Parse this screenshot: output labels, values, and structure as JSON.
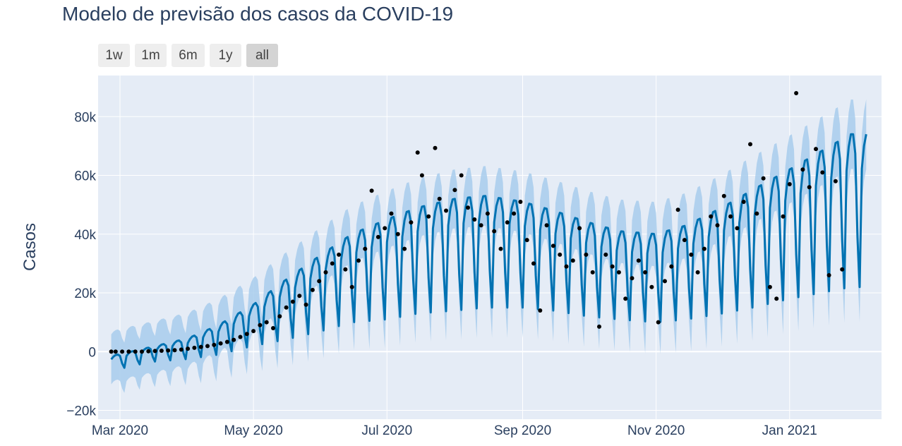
{
  "title": "Modelo de previsão dos casos da COVID-19",
  "range_selector": {
    "buttons": [
      {
        "label": "1w",
        "active": false
      },
      {
        "label": "1m",
        "active": false
      },
      {
        "label": "6m",
        "active": false
      },
      {
        "label": "1y",
        "active": false
      },
      {
        "label": "all",
        "active": true
      }
    ]
  },
  "colors": {
    "plot_bg": "#e5ecf6",
    "forecast_line": "#0072B2",
    "uncertainty_band": "#a8cdec",
    "observed_points": "#000000",
    "grid": "#ffffff"
  },
  "chart_data": {
    "type": "line",
    "title": "Modelo de previsão dos casos da COVID-19",
    "xlabel": "",
    "ylabel": "Casos",
    "x_ticks": [
      "Mar 2020",
      "May 2020",
      "Jul 2020",
      "Sep 2020",
      "Nov 2020",
      "Jan 2021"
    ],
    "y_ticks": [
      "−20k",
      "0",
      "20k",
      "40k",
      "60k",
      "80k"
    ],
    "y_tick_values": [
      -20000,
      0,
      20000,
      40000,
      60000,
      80000
    ],
    "xlim": [
      "2020-02-20",
      "2021-02-12"
    ],
    "ylim": [
      -23000,
      94000
    ],
    "grid": true,
    "series": [
      {
        "name": "yhat",
        "style": "line",
        "x": [
          "2020-02-26",
          "2020-03-15",
          "2020-04-01",
          "2020-04-15",
          "2020-05-01",
          "2020-05-15",
          "2020-06-01",
          "2020-06-15",
          "2020-07-01",
          "2020-07-15",
          "2020-08-01",
          "2020-08-15",
          "2020-09-01",
          "2020-09-15",
          "2020-10-01",
          "2020-10-15",
          "2020-11-01",
          "2020-11-15",
          "2020-12-01",
          "2020-12-15",
          "2021-01-01",
          "2021-01-15",
          "2021-01-29"
        ],
        "trend": [
          -4000,
          -1000,
          1000,
          4000,
          9000,
          14000,
          20000,
          25000,
          28000,
          31000,
          33000,
          34000,
          33000,
          31000,
          28000,
          26000,
          25000,
          27000,
          31000,
          35000,
          40000,
          44000,
          48000
        ],
        "amplitude": [
          2500,
          2500,
          3500,
          5000,
          7000,
          10000,
          13000,
          15000,
          17000,
          18000,
          19000,
          19000,
          18000,
          17000,
          16000,
          15000,
          15000,
          16000,
          18000,
          20000,
          22000,
          24000,
          26000
        ]
      },
      {
        "name": "yhat_band",
        "style": "area",
        "half_width": 8500
      },
      {
        "name": "y",
        "style": "markers",
        "points": [
          [
            "2020-02-26",
            0
          ],
          [
            "2020-02-28",
            0
          ],
          [
            "2020-03-02",
            0
          ],
          [
            "2020-03-05",
            0
          ],
          [
            "2020-03-08",
            0
          ],
          [
            "2020-03-11",
            0
          ],
          [
            "2020-03-14",
            100
          ],
          [
            "2020-03-17",
            200
          ],
          [
            "2020-03-20",
            300
          ],
          [
            "2020-03-23",
            400
          ],
          [
            "2020-03-26",
            500
          ],
          [
            "2020-03-29",
            700
          ],
          [
            "2020-04-01",
            1000
          ],
          [
            "2020-04-04",
            1300
          ],
          [
            "2020-04-07",
            1600
          ],
          [
            "2020-04-10",
            1900
          ],
          [
            "2020-04-13",
            2300
          ],
          [
            "2020-04-16",
            2800
          ],
          [
            "2020-04-19",
            3300
          ],
          [
            "2020-04-22",
            4000
          ],
          [
            "2020-04-25",
            5000
          ],
          [
            "2020-04-28",
            6000
          ],
          [
            "2020-05-01",
            7000
          ],
          [
            "2020-05-04",
            9000
          ],
          [
            "2020-05-07",
            10000
          ],
          [
            "2020-05-10",
            8000
          ],
          [
            "2020-05-13",
            12000
          ],
          [
            "2020-05-16",
            15000
          ],
          [
            "2020-05-19",
            17000
          ],
          [
            "2020-05-22",
            19000
          ],
          [
            "2020-05-25",
            16000
          ],
          [
            "2020-05-28",
            21000
          ],
          [
            "2020-05-31",
            24000
          ],
          [
            "2020-06-03",
            27000
          ],
          [
            "2020-06-06",
            30000
          ],
          [
            "2020-06-09",
            33000
          ],
          [
            "2020-06-12",
            28000
          ],
          [
            "2020-06-15",
            22000
          ],
          [
            "2020-06-18",
            31000
          ],
          [
            "2020-06-21",
            35000
          ],
          [
            "2020-06-24",
            54800
          ],
          [
            "2020-06-27",
            39000
          ],
          [
            "2020-06-30",
            42000
          ],
          [
            "2020-07-03",
            47000
          ],
          [
            "2020-07-06",
            40000
          ],
          [
            "2020-07-09",
            35000
          ],
          [
            "2020-07-12",
            44000
          ],
          [
            "2020-07-15",
            67800
          ],
          [
            "2020-07-17",
            60000
          ],
          [
            "2020-07-20",
            46000
          ],
          [
            "2020-07-23",
            69300
          ],
          [
            "2020-07-25",
            52000
          ],
          [
            "2020-07-28",
            48000
          ],
          [
            "2020-08-01",
            55000
          ],
          [
            "2020-08-04",
            60000
          ],
          [
            "2020-08-07",
            49000
          ],
          [
            "2020-08-10",
            45000
          ],
          [
            "2020-08-13",
            43000
          ],
          [
            "2020-08-16",
            47000
          ],
          [
            "2020-08-19",
            41000
          ],
          [
            "2020-08-22",
            35000
          ],
          [
            "2020-08-25",
            44000
          ],
          [
            "2020-08-28",
            47000
          ],
          [
            "2020-08-31",
            51000
          ],
          [
            "2020-09-03",
            38000
          ],
          [
            "2020-09-06",
            30000
          ],
          [
            "2020-09-09",
            14000
          ],
          [
            "2020-09-12",
            43000
          ],
          [
            "2020-09-15",
            36000
          ],
          [
            "2020-09-18",
            33000
          ],
          [
            "2020-09-21",
            29000
          ],
          [
            "2020-09-24",
            31000
          ],
          [
            "2020-09-27",
            42000
          ],
          [
            "2020-09-30",
            33000
          ],
          [
            "2020-10-03",
            27000
          ],
          [
            "2020-10-06",
            8500
          ],
          [
            "2020-10-09",
            33000
          ],
          [
            "2020-10-12",
            29000
          ],
          [
            "2020-10-15",
            27000
          ],
          [
            "2020-10-18",
            18000
          ],
          [
            "2020-10-21",
            25000
          ],
          [
            "2020-10-24",
            31000
          ],
          [
            "2020-10-27",
            27000
          ],
          [
            "2020-10-30",
            22000
          ],
          [
            "2020-11-02",
            10000
          ],
          [
            "2020-11-05",
            24000
          ],
          [
            "2020-11-08",
            29000
          ],
          [
            "2020-11-11",
            48300
          ],
          [
            "2020-11-14",
            38000
          ],
          [
            "2020-11-17",
            33000
          ],
          [
            "2020-11-20",
            27000
          ],
          [
            "2020-11-23",
            35000
          ],
          [
            "2020-11-26",
            46000
          ],
          [
            "2020-11-29",
            43000
          ],
          [
            "2020-12-02",
            53000
          ],
          [
            "2020-12-05",
            46000
          ],
          [
            "2020-12-08",
            42000
          ],
          [
            "2020-12-11",
            51000
          ],
          [
            "2020-12-14",
            70600
          ],
          [
            "2020-12-17",
            47000
          ],
          [
            "2020-12-20",
            59000
          ],
          [
            "2020-12-23",
            22000
          ],
          [
            "2020-12-26",
            18000
          ],
          [
            "2020-12-29",
            46000
          ],
          [
            "2021-01-01",
            57000
          ],
          [
            "2021-01-04",
            88000
          ],
          [
            "2021-01-07",
            62000
          ],
          [
            "2021-01-10",
            56000
          ],
          [
            "2021-01-13",
            69000
          ],
          [
            "2021-01-16",
            61000
          ],
          [
            "2021-01-19",
            26000
          ],
          [
            "2021-01-22",
            58000
          ],
          [
            "2021-01-25",
            28000
          ]
        ]
      }
    ]
  }
}
